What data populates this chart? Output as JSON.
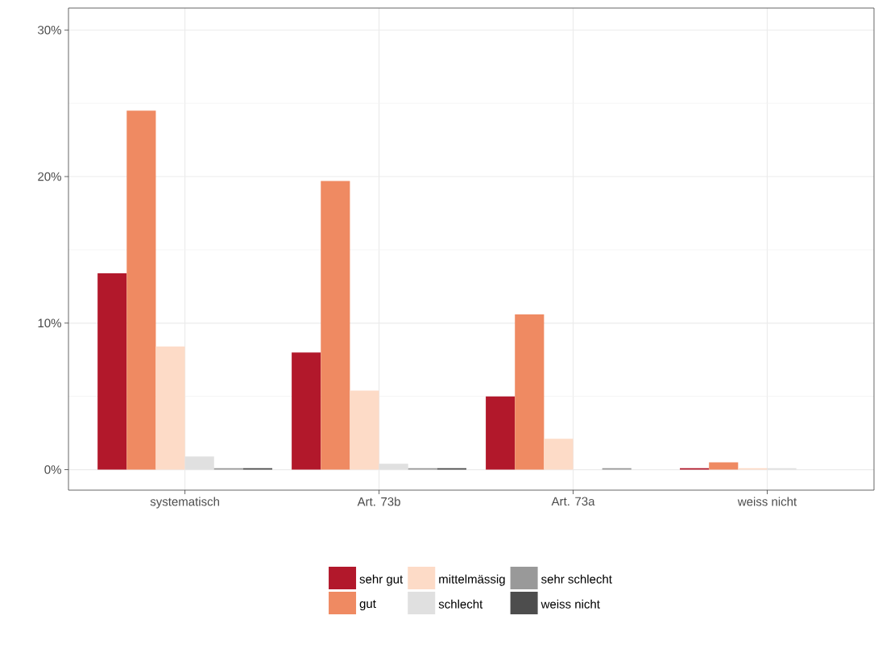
{
  "chart_data": {
    "type": "bar",
    "categories": [
      "systematisch",
      "Art. 73b",
      "Art. 73a",
      "weiss nicht"
    ],
    "series": [
      {
        "name": "sehr gut",
        "color": "#b2182b",
        "values": [
          13.4,
          8.0,
          5.0,
          0.1
        ]
      },
      {
        "name": "gut",
        "color": "#ef8a62",
        "values": [
          24.5,
          19.7,
          10.6,
          0.5
        ]
      },
      {
        "name": "mittelmässig",
        "color": "#fddbc7",
        "values": [
          8.4,
          5.4,
          2.1,
          0.1
        ]
      },
      {
        "name": "schlecht",
        "color": "#e0e0e0",
        "values": [
          0.9,
          0.4,
          0.0,
          0.1
        ]
      },
      {
        "name": "sehr schlecht",
        "color": "#999999",
        "values": [
          0.1,
          0.1,
          0.1,
          0.0
        ]
      },
      {
        "name": "weiss nicht",
        "color": "#4d4d4d",
        "values": [
          0.1,
          0.1,
          0.0,
          0.0
        ]
      }
    ],
    "ylim": [
      -1.4,
      31.5
    ],
    "yticks": [
      {
        "value": 0,
        "label": "0%"
      },
      {
        "value": 10,
        "label": "10%"
      },
      {
        "value": 20,
        "label": "20%"
      },
      {
        "value": 30,
        "label": "30%"
      }
    ],
    "grid": true,
    "legend": "bottom"
  }
}
